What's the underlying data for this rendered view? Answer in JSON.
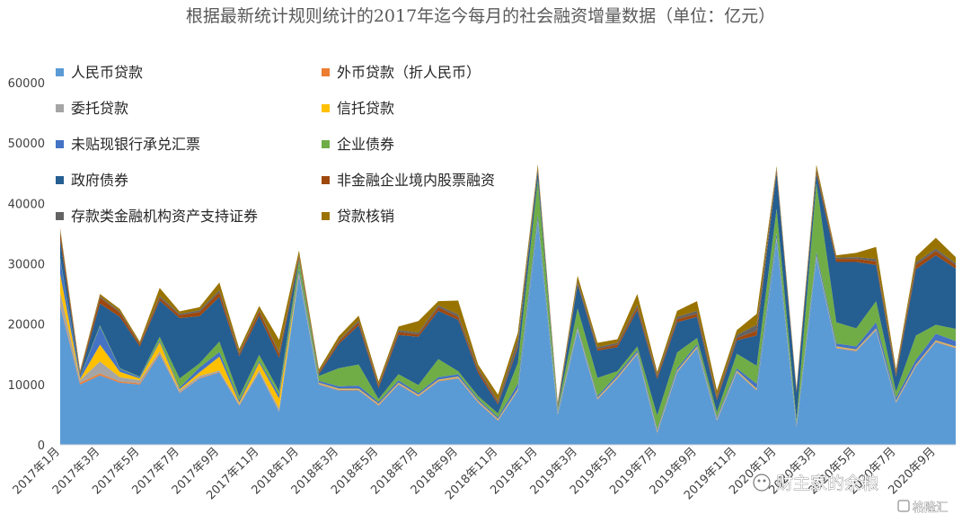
{
  "chart_data": {
    "type": "area",
    "stacked": true,
    "title": "根据最新统计规则统计的2017年迄今每月的社会融资增量数据（单位：亿元）",
    "xlabel": "",
    "ylabel": "",
    "ylim": [
      0,
      60000
    ],
    "yticks": [
      0,
      10000,
      20000,
      30000,
      40000,
      50000,
      60000
    ],
    "grid": false,
    "legend_position": "top-left",
    "x_tick_labels": [
      "2017年1月",
      "2017年3月",
      "2017年5月",
      "2017年7月",
      "2017年9月",
      "2017年11月",
      "2018年1月",
      "2018年3月",
      "2018年5月",
      "2018年7月",
      "2018年9月",
      "2018年11月",
      "2019年1月",
      "2019年3月",
      "2019年5月",
      "2019年7月",
      "2019年9月",
      "2019年11月",
      "2020年1月",
      "2020年3月",
      "2020年5月",
      "2020年7月",
      "2020年9月"
    ],
    "categories": [
      "2017-01",
      "2017-02",
      "2017-03",
      "2017-04",
      "2017-05",
      "2017-06",
      "2017-07",
      "2017-08",
      "2017-09",
      "2017-10",
      "2017-11",
      "2017-12",
      "2018-01",
      "2018-02",
      "2018-03",
      "2018-04",
      "2018-05",
      "2018-06",
      "2018-07",
      "2018-08",
      "2018-09",
      "2018-10",
      "2018-11",
      "2018-12",
      "2019-01",
      "2019-02",
      "2019-03",
      "2019-04",
      "2019-05",
      "2019-06",
      "2019-07",
      "2019-08",
      "2019-09",
      "2019-10",
      "2019-11",
      "2019-12",
      "2020-01",
      "2020-02",
      "2020-03",
      "2020-04",
      "2020-05",
      "2020-06",
      "2020-07",
      "2020-08",
      "2020-09",
      "2020-10"
    ],
    "series": [
      {
        "name": "人民币贷款",
        "color": "#5b9bd5",
        "values": [
          23000,
          10000,
          11500,
          10300,
          10000,
          15000,
          8600,
          11000,
          12000,
          6500,
          12000,
          5500,
          28000,
          10000,
          9000,
          9000,
          6500,
          10000,
          8000,
          10500,
          11000,
          7000,
          4000,
          9000,
          37000,
          5000,
          19000,
          7500,
          11000,
          15000,
          2000,
          12000,
          16000,
          4000,
          12000,
          9000,
          34000,
          3000,
          31000,
          16000,
          15500,
          19000,
          7000,
          13000,
          17000,
          16000
        ]
      },
      {
        "name": "外币贷款（折人民币）",
        "color": "#ed7d31",
        "values": [
          300,
          300,
          300,
          200,
          200,
          200,
          100,
          100,
          100,
          100,
          100,
          100,
          100,
          100,
          100,
          100,
          100,
          100,
          100,
          100,
          100,
          100,
          100,
          100,
          100,
          100,
          100,
          100,
          100,
          100,
          100,
          100,
          100,
          100,
          100,
          100,
          100,
          100,
          100,
          100,
          100,
          100,
          100,
          100,
          100,
          100
        ]
      },
      {
        "name": "委托贷款",
        "color": "#a5a5a5",
        "values": [
          2000,
          400,
          2000,
          700,
          500,
          300,
          300,
          300,
          200,
          200,
          300,
          400,
          200,
          100,
          100,
          100,
          100,
          100,
          100,
          100,
          100,
          100,
          100,
          100,
          100,
          100,
          100,
          100,
          100,
          100,
          100,
          100,
          100,
          100,
          100,
          100,
          100,
          100,
          100,
          100,
          100,
          100,
          100,
          100,
          100,
          100
        ]
      },
      {
        "name": "信托贷款",
        "color": "#ffc000",
        "values": [
          3000,
          200,
          2800,
          900,
          300,
          1500,
          200,
          600,
          2300,
          200,
          1200,
          1700,
          200,
          100,
          100,
          100,
          100,
          100,
          100,
          100,
          100,
          100,
          100,
          100,
          100,
          100,
          100,
          100,
          100,
          100,
          100,
          100,
          100,
          100,
          100,
          100,
          100,
          100,
          100,
          100,
          100,
          100,
          100,
          100,
          100,
          100
        ]
      },
      {
        "name": "未贴现银行承兑汇票",
        "color": "#4472c4",
        "values": [
          2500,
          300,
          3000,
          500,
          200,
          300,
          300,
          800,
          800,
          400,
          300,
          600,
          600,
          300,
          400,
          500,
          300,
          400,
          300,
          400,
          400,
          300,
          300,
          800,
          800,
          300,
          300,
          300,
          400,
          400,
          300,
          400,
          400,
          300,
          400,
          800,
          800,
          300,
          600,
          500,
          500,
          1000,
          500,
          800,
          1100,
          900
        ]
      },
      {
        "name": "企业债券",
        "color": "#70ad47",
        "values": [
          200,
          100,
          200,
          100,
          100,
          600,
          1500,
          700,
          1700,
          600,
          1000,
          600,
          1500,
          800,
          3000,
          3500,
          500,
          1000,
          1300,
          3000,
          500,
          500,
          600,
          3500,
          5800,
          400,
          3000,
          3000,
          500,
          600,
          2300,
          2600,
          1000,
          800,
          2400,
          3000,
          4000,
          500,
          11500,
          3500,
          3000,
          3500,
          1000,
          4000,
          1500,
          2000
        ]
      },
      {
        "name": "政府债券",
        "color": "#255e91",
        "values": [
          3000,
          300,
          3600,
          8500,
          5000,
          6000,
          10000,
          7800,
          7400,
          6700,
          6500,
          5500,
          200,
          300,
          4000,
          6500,
          1800,
          6500,
          8000,
          8000,
          8500,
          3800,
          1500,
          2500,
          1500,
          200,
          4000,
          4500,
          4000,
          6000,
          6000,
          5000,
          3500,
          2000,
          2200,
          5000,
          6000,
          4500,
          1500,
          10000,
          11000,
          6000,
          2500,
          11000,
          11500,
          10000
        ]
      },
      {
        "name": "非金融企业境内股票融资",
        "color": "#9e480e",
        "values": [
          1200,
          300,
          1000,
          700,
          400,
          500,
          500,
          700,
          800,
          400,
          700,
          700,
          500,
          300,
          400,
          500,
          400,
          500,
          400,
          600,
          500,
          500,
          300,
          400,
          400,
          300,
          300,
          300,
          400,
          500,
          400,
          500,
          500,
          400,
          400,
          800,
          500,
          300,
          600,
          500,
          500,
          600,
          500,
          700,
          700,
          600
        ]
      },
      {
        "name": "存款类金融机构资产支持证券",
        "color": "#636363",
        "values": [
          300,
          100,
          200,
          200,
          100,
          300,
          200,
          300,
          300,
          200,
          200,
          300,
          200,
          100,
          200,
          300,
          200,
          300,
          300,
          300,
          400,
          300,
          300,
          1000,
          200,
          200,
          300,
          300,
          300,
          400,
          300,
          400,
          500,
          300,
          500,
          1000,
          300,
          200,
          300,
          200,
          300,
          400,
          300,
          400,
          400,
          300
        ]
      },
      {
        "name": "贷款核销",
        "color": "#997300",
        "values": [
          400,
          300,
          400,
          400,
          300,
          1300,
          400,
          500,
          1300,
          600,
          700,
          2000,
          700,
          400,
          700,
          800,
          500,
          600,
          1900,
          700,
          2300,
          600,
          1000,
          1100,
          500,
          300,
          800,
          700,
          600,
          1800,
          500,
          1000,
          1600,
          900,
          800,
          1800,
          300,
          300,
          600,
          400,
          700,
          2000,
          400,
          1000,
          1800,
          1000
        ]
      }
    ]
  },
  "watermark": {
    "account": "财主家的余粮",
    "source": "格隆汇"
  }
}
